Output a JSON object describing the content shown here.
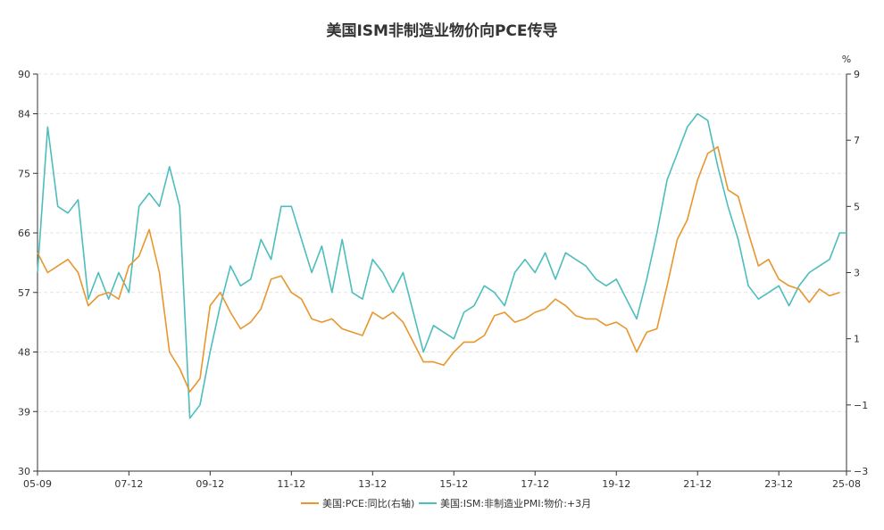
{
  "chart_data": {
    "type": "line",
    "title": "美国ISM非制造业物价向PCE传导",
    "left_axis": {
      "ylim": [
        30,
        90
      ],
      "ticks": [
        "30",
        "39",
        "48",
        "57",
        "66",
        "75",
        "84",
        "90"
      ]
    },
    "right_axis": {
      "unit": "%",
      "ylim": [
        -3,
        9
      ],
      "ticks": [
        "-3",
        "-1",
        "1",
        "3",
        "5",
        "7",
        "9"
      ]
    },
    "x_ticks": [
      "05-09",
      "07-12",
      "09-12",
      "11-12",
      "13-12",
      "15-12",
      "17-12",
      "19-12",
      "21-12",
      "23-12",
      "25-08"
    ],
    "grid": true,
    "legend_position": "bottom-center",
    "series": [
      {
        "name": "美国:PCE:同比(右轴)",
        "axis": "right",
        "color": "#e8962e",
        "x": [
          "05-09",
          "05-12",
          "06-03",
          "06-06",
          "06-09",
          "06-12",
          "07-03",
          "07-06",
          "07-09",
          "07-12",
          "08-03",
          "08-06",
          "08-09",
          "08-12",
          "09-03",
          "09-06",
          "09-09",
          "09-12",
          "10-03",
          "10-06",
          "10-09",
          "10-12",
          "11-03",
          "11-06",
          "11-09",
          "11-12",
          "12-03",
          "12-06",
          "12-09",
          "12-12",
          "13-03",
          "13-06",
          "13-09",
          "13-12",
          "14-03",
          "14-06",
          "14-09",
          "14-12",
          "15-03",
          "15-06",
          "15-09",
          "15-12",
          "16-03",
          "16-06",
          "16-09",
          "16-12",
          "17-03",
          "17-06",
          "17-09",
          "17-12",
          "18-03",
          "18-06",
          "18-09",
          "18-12",
          "19-03",
          "19-06",
          "19-09",
          "19-12",
          "20-03",
          "20-06",
          "20-09",
          "20-12",
          "21-03",
          "21-06",
          "21-09",
          "21-12",
          "22-03",
          "22-06",
          "22-09",
          "22-12",
          "23-03",
          "23-06",
          "23-09",
          "23-12",
          "24-03",
          "24-06",
          "24-09",
          "24-12",
          "25-03",
          "25-06"
        ],
        "values": [
          3.6,
          3.0,
          3.2,
          3.4,
          3.0,
          2.0,
          2.3,
          2.4,
          2.2,
          3.2,
          3.5,
          4.3,
          3.0,
          0.6,
          0.1,
          -0.6,
          -0.2,
          2.0,
          2.4,
          1.8,
          1.3,
          1.5,
          1.9,
          2.8,
          2.9,
          2.4,
          2.2,
          1.6,
          1.5,
          1.6,
          1.3,
          1.2,
          1.1,
          1.8,
          1.6,
          1.8,
          1.5,
          0.9,
          0.3,
          0.3,
          0.2,
          0.6,
          0.9,
          0.9,
          1.1,
          1.7,
          1.8,
          1.5,
          1.6,
          1.8,
          1.9,
          2.2,
          2.0,
          1.7,
          1.6,
          1.6,
          1.4,
          1.5,
          1.3,
          0.6,
          1.2,
          1.3,
          2.6,
          4.0,
          4.6,
          5.8,
          6.6,
          6.8,
          5.5,
          5.3,
          4.2,
          3.2,
          3.4,
          2.8,
          2.6,
          2.5,
          2.1,
          2.5,
          2.3,
          2.4
        ]
      },
      {
        "name": "美国:ISM:非制造业PMI:物价:+3月",
        "axis": "left",
        "color": "#4dbdbd",
        "x": [
          "05-09",
          "05-12",
          "06-03",
          "06-06",
          "06-09",
          "06-12",
          "07-03",
          "07-06",
          "07-09",
          "07-12",
          "08-03",
          "08-06",
          "08-09",
          "08-12",
          "09-03",
          "09-06",
          "09-09",
          "09-12",
          "10-03",
          "10-06",
          "10-09",
          "10-12",
          "11-03",
          "11-06",
          "11-09",
          "11-12",
          "12-03",
          "12-06",
          "12-09",
          "12-12",
          "13-03",
          "13-06",
          "13-09",
          "13-12",
          "14-03",
          "14-06",
          "14-09",
          "14-12",
          "15-03",
          "15-06",
          "15-09",
          "15-12",
          "16-03",
          "16-06",
          "16-09",
          "16-12",
          "17-03",
          "17-06",
          "17-09",
          "17-12",
          "18-03",
          "18-06",
          "18-09",
          "18-12",
          "19-03",
          "19-06",
          "19-09",
          "19-12",
          "20-03",
          "20-06",
          "20-09",
          "20-12",
          "21-03",
          "21-06",
          "21-09",
          "21-12",
          "22-03",
          "22-06",
          "22-09",
          "22-12",
          "23-03",
          "23-06",
          "23-09",
          "23-12",
          "24-03",
          "24-06",
          "24-09",
          "24-12",
          "25-03",
          "25-06",
          "25-08"
        ],
        "values": [
          60,
          82,
          70,
          69,
          71,
          56,
          60,
          56,
          60,
          57,
          70,
          72,
          70,
          76,
          70,
          38,
          40,
          48,
          55,
          61,
          58,
          59,
          65,
          62,
          70,
          70,
          65,
          60,
          64,
          57,
          65,
          57,
          56,
          62,
          60,
          57,
          60,
          54,
          48,
          52,
          51,
          50,
          54,
          55,
          58,
          57,
          55,
          60,
          62,
          60,
          63,
          59,
          63,
          62,
          61,
          59,
          58,
          59,
          56,
          53,
          59,
          66,
          74,
          78,
          82,
          84,
          83,
          76,
          70,
          65,
          58,
          56,
          57,
          58,
          55,
          58,
          60,
          61,
          62,
          66,
          66
        ]
      }
    ]
  }
}
